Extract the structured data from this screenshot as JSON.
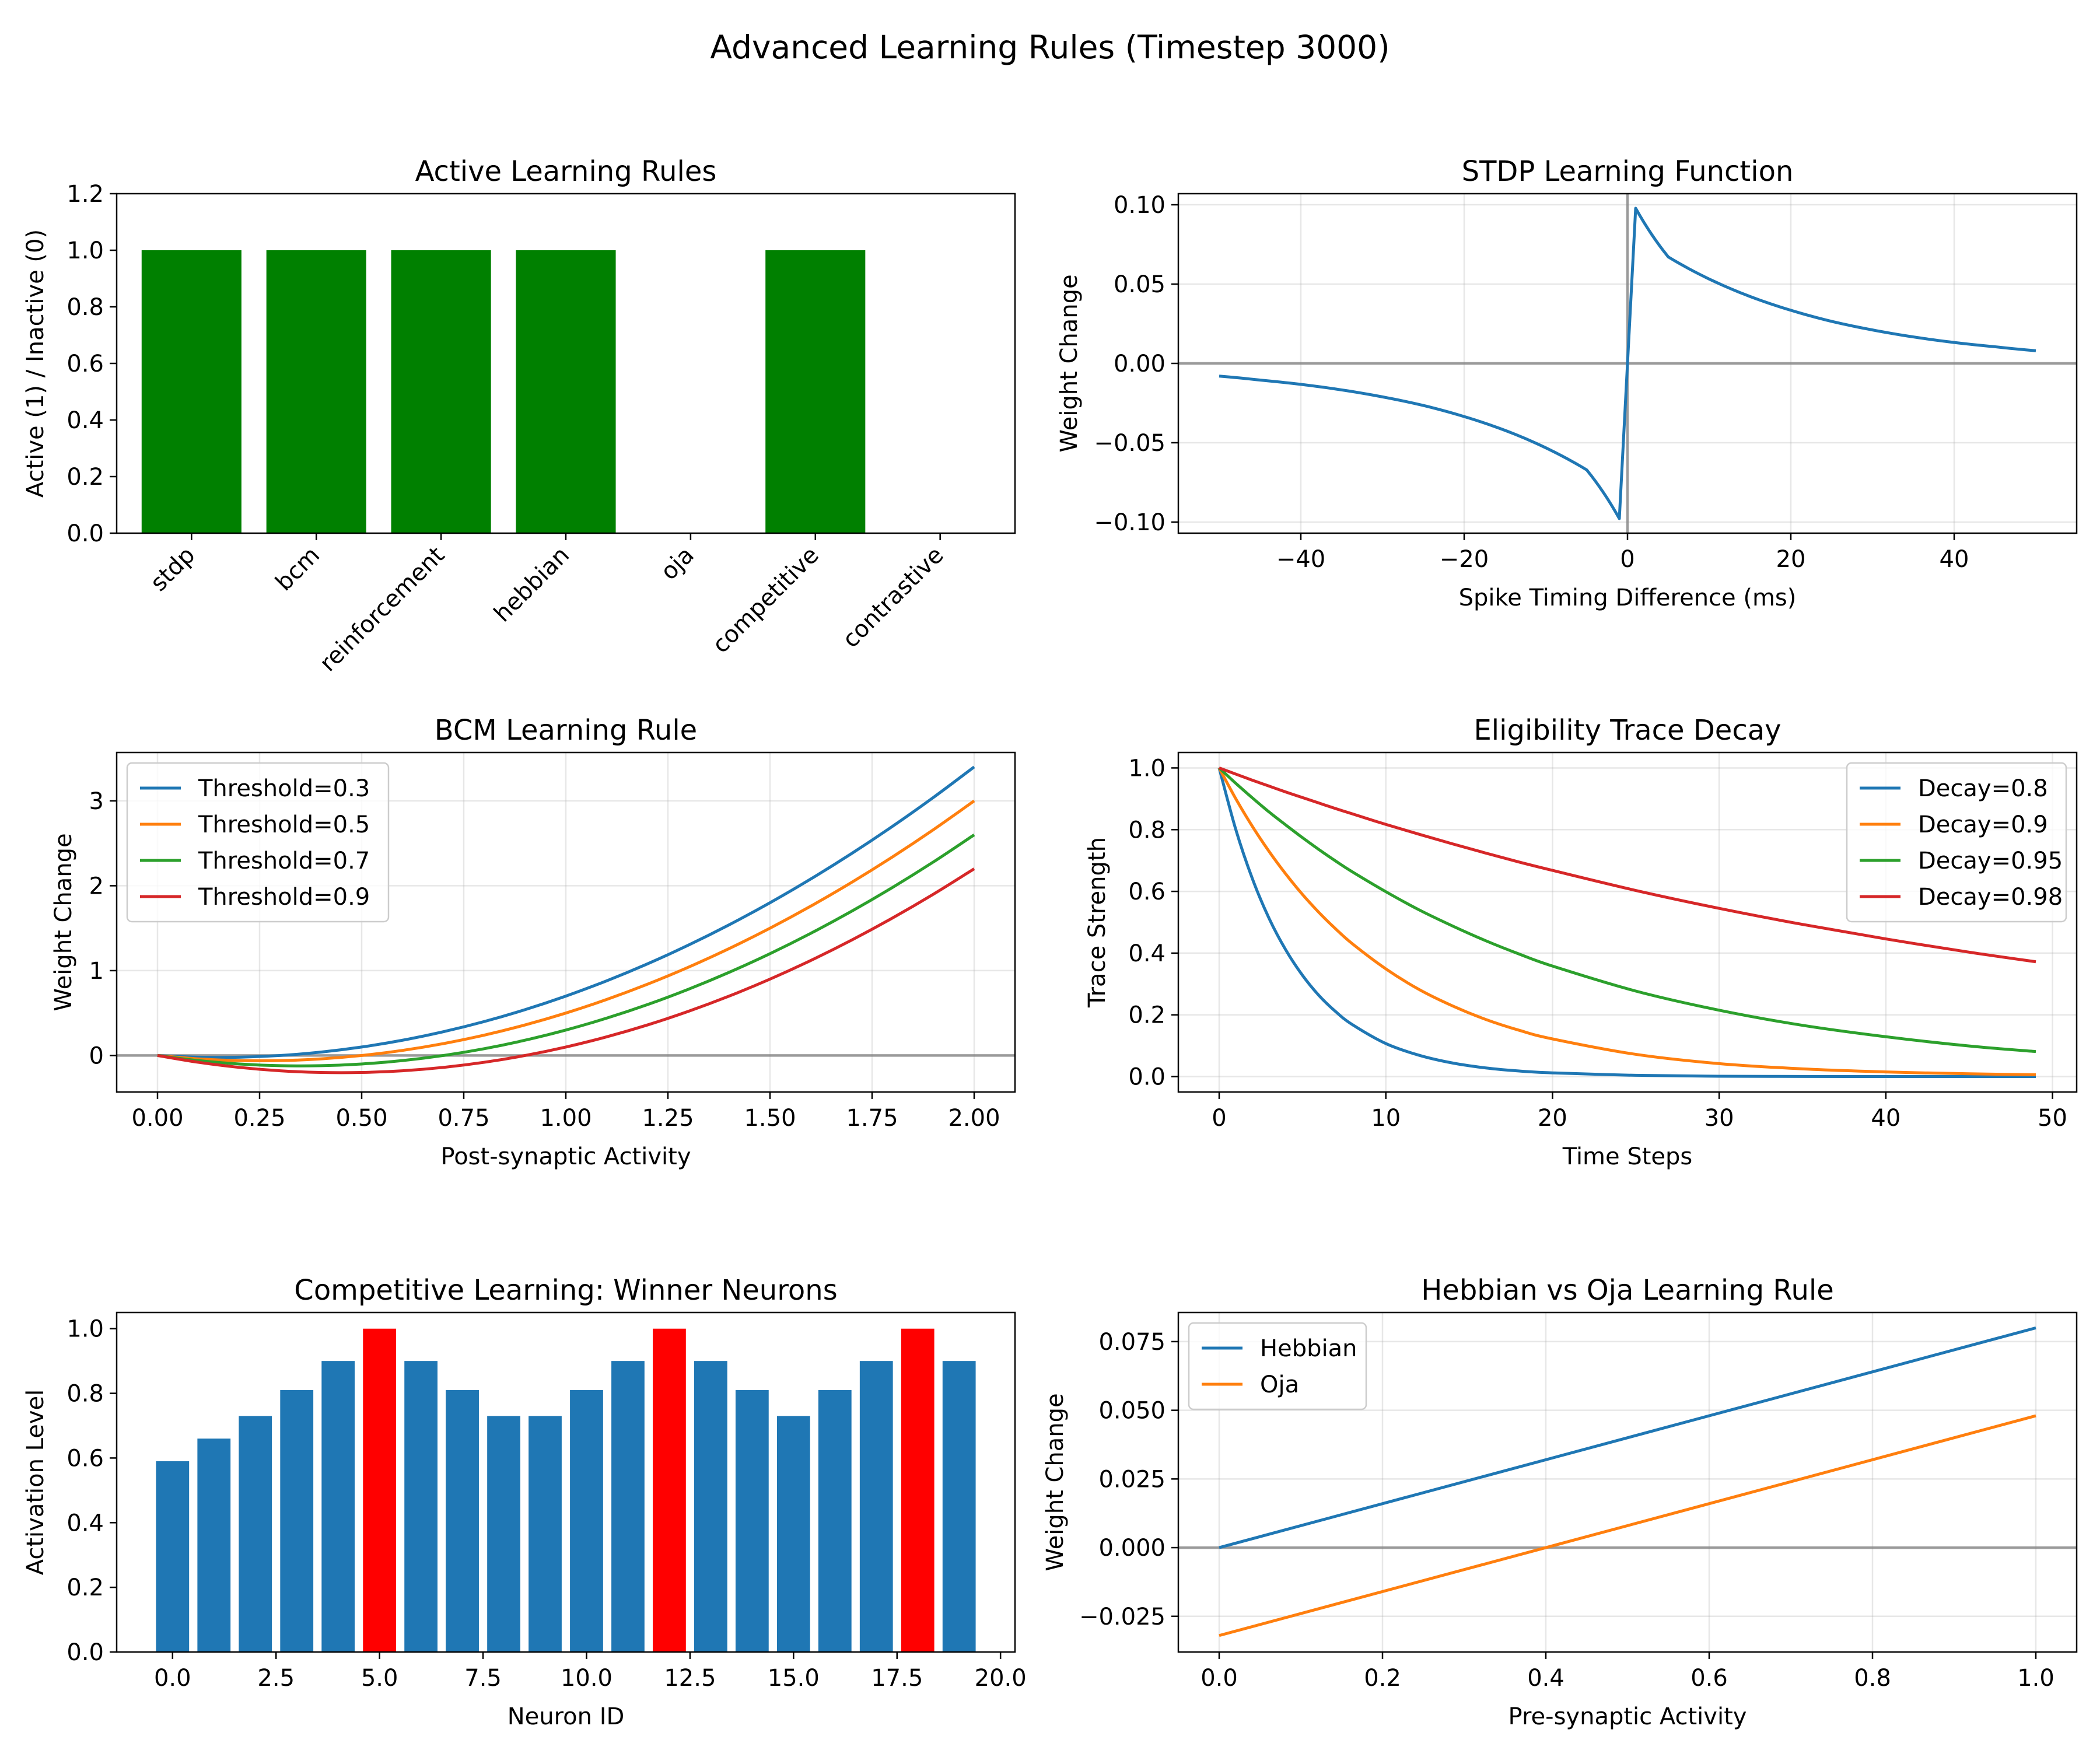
{
  "figure": {
    "title": "Advanced Learning Rules (Timestep 3000)"
  },
  "chart_data": [
    {
      "id": "active",
      "type": "bar",
      "title": "Active Learning Rules",
      "xlabel": "",
      "ylabel": "Active (1) / Inactive (0)",
      "categories": [
        "stdp",
        "bcm",
        "reinforcement",
        "hebbian",
        "oja",
        "competitive",
        "contrastive"
      ],
      "values": [
        1,
        1,
        1,
        1,
        0,
        1,
        0
      ],
      "bar_color": "#008000",
      "ylim": [
        0,
        1.2
      ],
      "yticks": [
        0.0,
        0.2,
        0.4,
        0.6,
        0.8,
        1.0,
        1.2
      ],
      "ytick_labels": [
        "0.0",
        "0.2",
        "0.4",
        "0.6",
        "0.8",
        "1.0",
        "1.2"
      ],
      "grid": false
    },
    {
      "id": "stdp",
      "type": "line",
      "title": "STDP Learning Function",
      "xlabel": "Spike Timing Difference (ms)",
      "ylabel": "Weight Change",
      "x": [
        -50,
        -45,
        -40,
        -35,
        -30,
        -25,
        -20,
        -15,
        -10,
        -5,
        -1,
        1,
        5,
        10,
        15,
        20,
        25,
        30,
        35,
        40,
        45,
        50
      ],
      "series": [
        {
          "values": [
            -0.008,
            -0.0105,
            -0.0132,
            -0.0167,
            -0.0211,
            -0.0265,
            -0.0335,
            -0.0422,
            -0.0532,
            -0.0671,
            -0.0978,
            0.0978,
            0.0671,
            0.0532,
            0.0422,
            0.0335,
            0.0265,
            0.0211,
            0.0167,
            0.0132,
            0.0105,
            0.008
          ],
          "color": "#1f77b4"
        }
      ],
      "xlim": [
        -55,
        55
      ],
      "ylim": [
        -0.107,
        0.107
      ],
      "xticks": [
        -40,
        -20,
        0,
        20,
        40
      ],
      "xtick_labels": [
        "−40",
        "−20",
        "0",
        "20",
        "40"
      ],
      "yticks": [
        -0.1,
        -0.05,
        0.0,
        0.05,
        0.1
      ],
      "ytick_labels": [
        "−0.10",
        "−0.05",
        "0.00",
        "0.05",
        "0.10"
      ],
      "grid": true,
      "ref_lines": {
        "h": 0,
        "v": 0
      }
    },
    {
      "id": "bcm",
      "type": "line",
      "title": "BCM Learning Rule",
      "xlabel": "Post-synaptic Activity",
      "ylabel": "Weight Change",
      "x": [
        0,
        0.1,
        0.2,
        0.3,
        0.4,
        0.5,
        0.6,
        0.7,
        0.8,
        0.9,
        1.0,
        1.1,
        1.2,
        1.3,
        1.4,
        1.5,
        1.6,
        1.7,
        1.8,
        1.9,
        2.0
      ],
      "series": [
        {
          "name": "Threshold=0.3",
          "color": "#1f77b4",
          "values": [
            0,
            -0.02,
            -0.02,
            0,
            0.04,
            0.1,
            0.18,
            0.28,
            0.4,
            0.54,
            0.7,
            0.88,
            1.08,
            1.3,
            1.54,
            1.8,
            2.08,
            2.38,
            2.7,
            3.04,
            3.4
          ]
        },
        {
          "name": "Threshold=0.5",
          "color": "#ff7f0e",
          "values": [
            0,
            -0.04,
            -0.06,
            -0.06,
            -0.04,
            0,
            0.06,
            0.14,
            0.24,
            0.36,
            0.5,
            0.66,
            0.84,
            1.04,
            1.26,
            1.5,
            1.76,
            2.04,
            2.34,
            2.66,
            3.0
          ]
        },
        {
          "name": "Threshold=0.7",
          "color": "#2ca02c",
          "values": [
            0,
            -0.06,
            -0.1,
            -0.12,
            -0.12,
            -0.1,
            -0.06,
            0,
            0.08,
            0.18,
            0.3,
            0.44,
            0.6,
            0.78,
            0.98,
            1.2,
            1.44,
            1.7,
            1.98,
            2.28,
            2.6
          ]
        },
        {
          "name": "Threshold=0.9",
          "color": "#d62728",
          "values": [
            0,
            -0.08,
            -0.14,
            -0.18,
            -0.2,
            -0.2,
            -0.18,
            -0.14,
            -0.08,
            0,
            0.1,
            0.22,
            0.36,
            0.52,
            0.7,
            0.9,
            1.12,
            1.36,
            1.62,
            1.9,
            2.2
          ]
        }
      ],
      "xlim": [
        -0.1,
        2.1
      ],
      "ylim": [
        -0.43,
        3.57
      ],
      "xticks": [
        0,
        0.25,
        0.5,
        0.75,
        1.0,
        1.25,
        1.5,
        1.75,
        2.0
      ],
      "xtick_labels": [
        "0.00",
        "0.25",
        "0.50",
        "0.75",
        "1.00",
        "1.25",
        "1.50",
        "1.75",
        "2.00"
      ],
      "yticks": [
        0,
        1,
        2,
        3
      ],
      "ytick_labels": [
        "0",
        "1",
        "2",
        "3"
      ],
      "grid": true,
      "legend": "top-left",
      "ref_lines": {
        "h": 0
      }
    },
    {
      "id": "trace",
      "type": "line",
      "title": "Eligibility Trace Decay",
      "xlabel": "Time Steps",
      "ylabel": "Trace Strength",
      "x": [
        0,
        1,
        2,
        3,
        4,
        5,
        6,
        7,
        8,
        10,
        12,
        14,
        16,
        18,
        20,
        25,
        30,
        35,
        40,
        45,
        49
      ],
      "series": [
        {
          "name": "Decay=0.8",
          "color": "#1f77b4",
          "values": [
            1,
            0.8,
            0.64,
            0.512,
            0.41,
            0.328,
            0.262,
            0.21,
            0.168,
            0.107,
            0.069,
            0.044,
            0.028,
            0.018,
            0.012,
            0.004,
            0.001,
            0.0004,
            0.0001,
            4e-05,
            2e-05
          ]
        },
        {
          "name": "Decay=0.9",
          "color": "#ff7f0e",
          "values": [
            1,
            0.9,
            0.81,
            0.729,
            0.656,
            0.59,
            0.531,
            0.478,
            0.43,
            0.349,
            0.282,
            0.229,
            0.185,
            0.15,
            0.122,
            0.072,
            0.042,
            0.025,
            0.015,
            0.009,
            0.006
          ]
        },
        {
          "name": "Decay=0.95",
          "color": "#2ca02c",
          "values": [
            1,
            0.95,
            0.9025,
            0.857,
            0.815,
            0.774,
            0.735,
            0.698,
            0.663,
            0.599,
            0.54,
            0.488,
            0.44,
            0.397,
            0.358,
            0.277,
            0.215,
            0.166,
            0.129,
            0.099,
            0.081
          ]
        },
        {
          "name": "Decay=0.98",
          "color": "#d62728",
          "values": [
            1,
            0.98,
            0.96,
            0.941,
            0.922,
            0.904,
            0.886,
            0.868,
            0.851,
            0.817,
            0.785,
            0.754,
            0.724,
            0.695,
            0.668,
            0.603,
            0.545,
            0.493,
            0.446,
            0.403,
            0.372
          ]
        }
      ],
      "xlim": [
        -2.45,
        51.45
      ],
      "ylim": [
        -0.05,
        1.05
      ],
      "xticks": [
        0,
        10,
        20,
        30,
        40,
        50
      ],
      "xtick_labels": [
        "0",
        "10",
        "20",
        "30",
        "40",
        "50"
      ],
      "yticks": [
        0,
        0.2,
        0.4,
        0.6,
        0.8,
        1.0
      ],
      "ytick_labels": [
        "0.0",
        "0.2",
        "0.4",
        "0.6",
        "0.8",
        "1.0"
      ],
      "grid": true,
      "legend": "top-right"
    },
    {
      "id": "competitive",
      "type": "bar",
      "title": "Competitive Learning: Winner Neurons",
      "xlabel": "Neuron ID",
      "ylabel": "Activation Level",
      "x": [
        0,
        1,
        2,
        3,
        4,
        5,
        6,
        7,
        8,
        9,
        10,
        11,
        12,
        13,
        14,
        15,
        16,
        17,
        18,
        19
      ],
      "values": [
        0.59,
        0.66,
        0.73,
        0.81,
        0.9,
        1.0,
        0.9,
        0.81,
        0.73,
        0.73,
        0.81,
        0.9,
        1.0,
        0.9,
        0.81,
        0.73,
        0.81,
        0.9,
        1.0,
        0.9
      ],
      "winners": [
        5,
        12,
        18
      ],
      "bar_color": "#1f77b4",
      "winner_color": "#ff0000",
      "xlim": [
        -1.35,
        20.35
      ],
      "ylim": [
        0,
        1.05
      ],
      "xticks": [
        0,
        2.5,
        5,
        7.5,
        10,
        12.5,
        15,
        17.5,
        20
      ],
      "xtick_labels": [
        "0.0",
        "2.5",
        "5.0",
        "7.5",
        "10.0",
        "12.5",
        "15.0",
        "17.5",
        "20.0"
      ],
      "yticks": [
        0,
        0.2,
        0.4,
        0.6,
        0.8,
        1.0
      ],
      "ytick_labels": [
        "0.0",
        "0.2",
        "0.4",
        "0.6",
        "0.8",
        "1.0"
      ],
      "grid": false
    },
    {
      "id": "hebbian",
      "type": "line",
      "title": "Hebbian vs Oja Learning Rule",
      "xlabel": "Pre-synaptic Activity",
      "ylabel": "Weight Change",
      "x": [
        0,
        1
      ],
      "series": [
        {
          "name": "Hebbian",
          "color": "#1f77b4",
          "values": [
            0,
            0.08
          ]
        },
        {
          "name": "Oja",
          "color": "#ff7f0e",
          "values": [
            -0.032,
            0.048
          ]
        }
      ],
      "xlim": [
        -0.05,
        1.05
      ],
      "ylim": [
        -0.038,
        0.0856
      ],
      "xticks": [
        0,
        0.2,
        0.4,
        0.6,
        0.8,
        1.0
      ],
      "xtick_labels": [
        "0.0",
        "0.2",
        "0.4",
        "0.6",
        "0.8",
        "1.0"
      ],
      "yticks": [
        -0.025,
        0,
        0.025,
        0.05,
        0.075
      ],
      "ytick_labels": [
        "−0.025",
        "0.000",
        "0.025",
        "0.050",
        "0.075"
      ],
      "grid": true,
      "legend": "top-left",
      "ref_lines": {
        "h": 0
      }
    }
  ]
}
